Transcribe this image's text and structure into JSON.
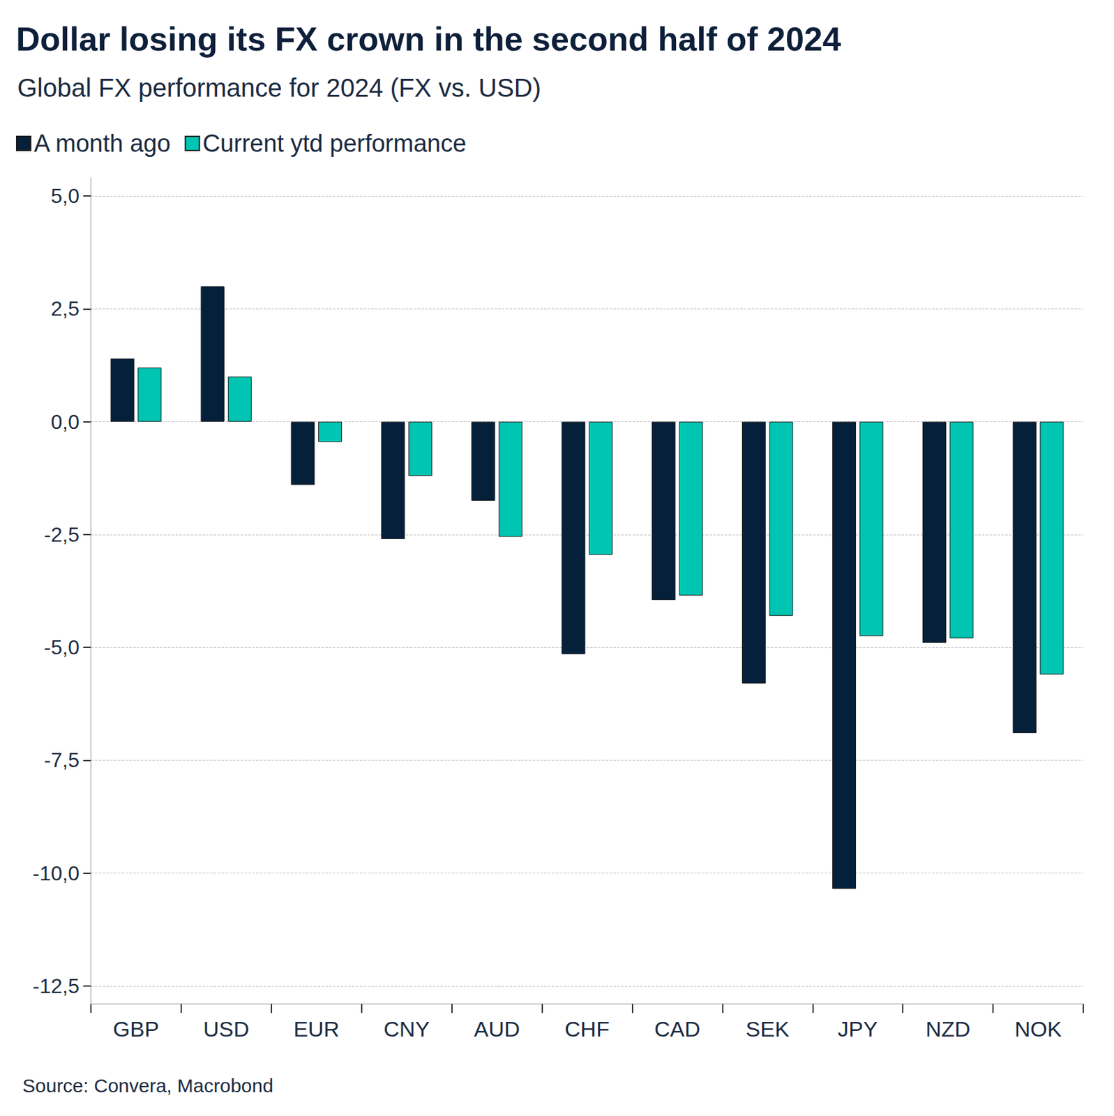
{
  "chart_data": {
    "type": "bar",
    "title": "Dollar losing its FX crown in the second half of 2024",
    "subtitle": "Global FX performance for 2024 (FX vs. USD)",
    "source": "Source: Convera, Macrobond",
    "categories": [
      "GBP",
      "USD",
      "EUR",
      "CNY",
      "AUD",
      "CHF",
      "CAD",
      "SEK",
      "JPY",
      "NZD",
      "NOK"
    ],
    "series": [
      {
        "name": "A month ago",
        "color": "#04203b",
        "values": [
          1.4,
          3.0,
          -1.4,
          -2.6,
          -1.75,
          -5.15,
          -3.95,
          -5.8,
          -10.35,
          -4.9,
          -6.9
        ]
      },
      {
        "name": "Current ytd performance",
        "color": "#00c5b2",
        "values": [
          1.2,
          1.0,
          -0.45,
          -1.2,
          -2.55,
          -2.95,
          -3.85,
          -4.3,
          -4.75,
          -4.8,
          -5.6
        ]
      }
    ],
    "ylim": [
      -12.9,
      5.4
    ],
    "yticks": [
      {
        "value": -12.5,
        "label": "-12,5"
      },
      {
        "value": -10,
        "label": "-10,0"
      },
      {
        "value": -7.5,
        "label": "-7,5"
      },
      {
        "value": -5,
        "label": "-5,0"
      },
      {
        "value": -2.5,
        "label": "-2,5"
      },
      {
        "value": 0,
        "label": "0,0"
      },
      {
        "value": 2.5,
        "label": "2,5"
      },
      {
        "value": 5,
        "label": "5,0"
      }
    ],
    "grid": true,
    "legend": "top-left"
  }
}
